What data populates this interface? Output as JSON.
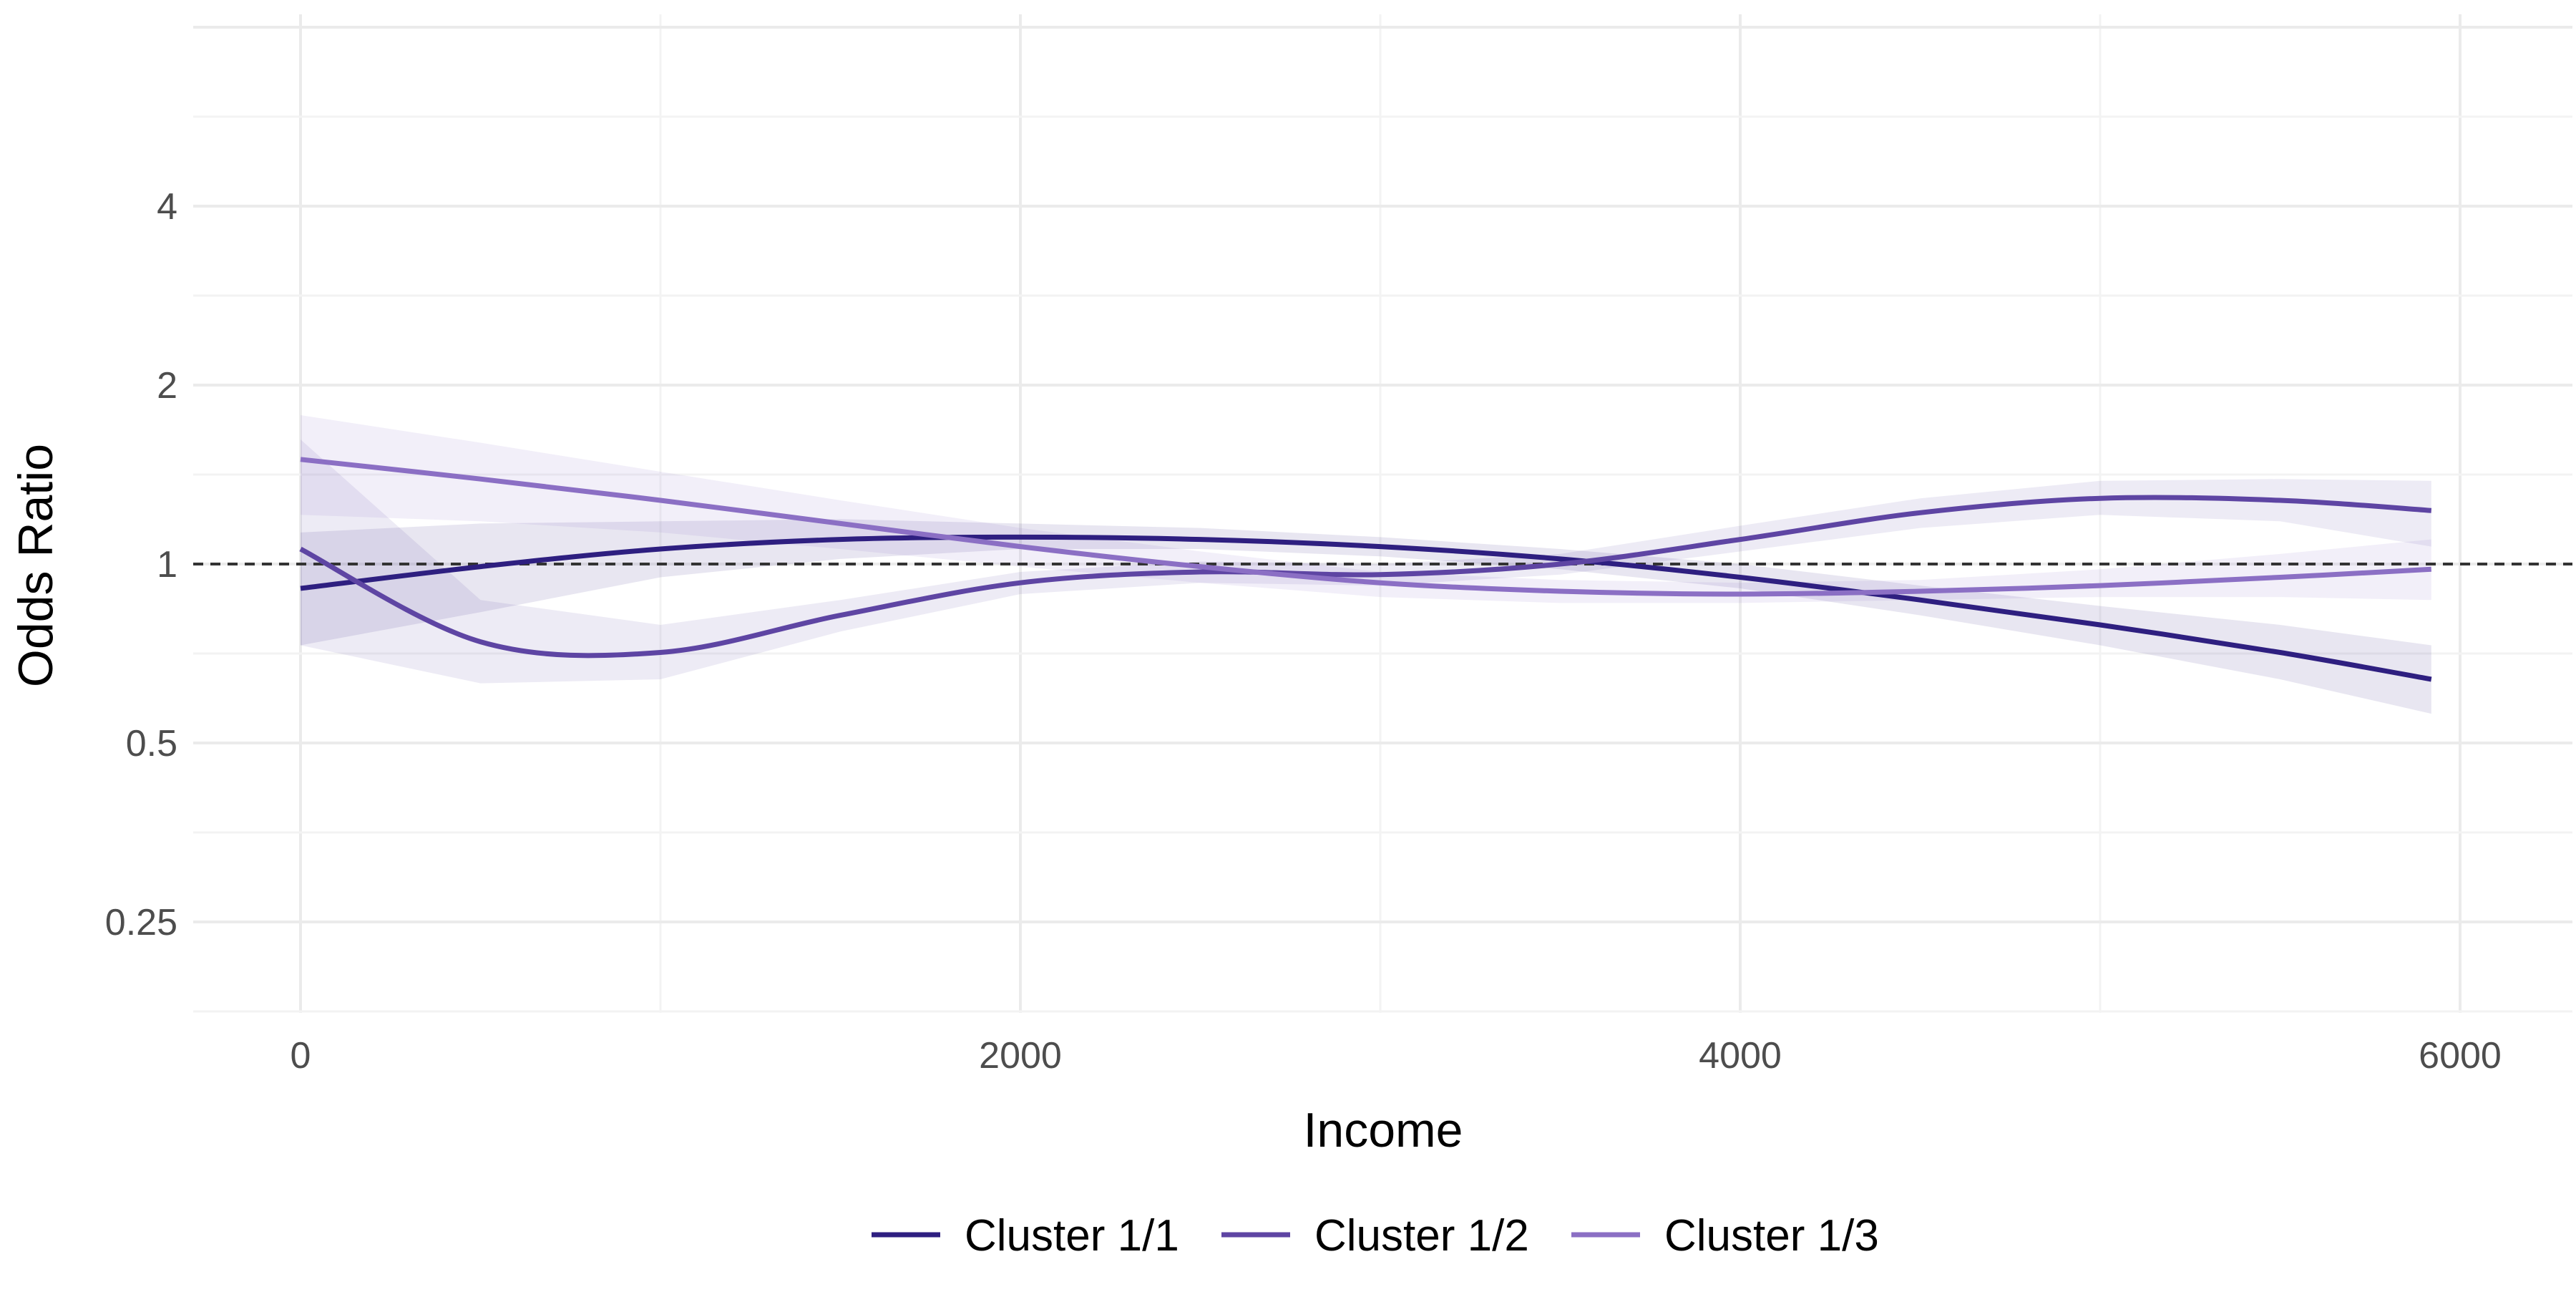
{
  "chart_data": {
    "type": "line",
    "title": "",
    "xlabel": "Income",
    "ylabel": "Odds Ratio",
    "xlim": [
      -300,
      6160
    ],
    "ylim": [
      0.18,
      6.6
    ],
    "y_scale": "log2",
    "x_ticks": [
      0,
      2000,
      4000,
      6000
    ],
    "x_tick_labels": [
      "0",
      "2000",
      "4000",
      "6000"
    ],
    "y_ticks": [
      0.25,
      0.5,
      1,
      2,
      4
    ],
    "y_tick_labels": [
      "0.25",
      "0.5",
      "1",
      "2",
      "4"
    ],
    "reference_line": {
      "y": 1,
      "style": "dashed",
      "color": "#333333"
    },
    "grid": true,
    "legend_position": "bottom",
    "x": [
      0,
      500,
      1000,
      1500,
      2000,
      2500,
      3000,
      3500,
      4000,
      4500,
      5000,
      5500,
      5920
    ],
    "series": [
      {
        "name": "Cluster 1/1",
        "color": "#2e1f80",
        "values": [
          0.91,
          0.99,
          1.06,
          1.1,
          1.11,
          1.1,
          1.07,
          1.02,
          0.95,
          0.87,
          0.79,
          0.71,
          0.64
        ],
        "lower": [
          0.73,
          0.83,
          0.95,
          1.02,
          1.06,
          1.06,
          1.03,
          0.98,
          0.91,
          0.82,
          0.73,
          0.64,
          0.56
        ],
        "upper": [
          1.13,
          1.17,
          1.18,
          1.19,
          1.17,
          1.15,
          1.11,
          1.06,
          1.0,
          0.92,
          0.85,
          0.79,
          0.73
        ]
      },
      {
        "name": "Cluster 1/2",
        "color": "#5e45a3",
        "values": [
          1.06,
          0.74,
          0.71,
          0.82,
          0.93,
          0.97,
          0.96,
          1.0,
          1.1,
          1.22,
          1.29,
          1.28,
          1.23
        ],
        "lower": [
          0.73,
          0.63,
          0.64,
          0.77,
          0.89,
          0.93,
          0.92,
          0.96,
          1.05,
          1.15,
          1.21,
          1.18,
          1.07
        ],
        "upper": [
          1.62,
          0.87,
          0.79,
          0.87,
          0.97,
          1.01,
          1.0,
          1.04,
          1.16,
          1.29,
          1.38,
          1.39,
          1.38
        ]
      },
      {
        "name": "Cluster 1/3",
        "color": "#8b6fc4",
        "values": [
          1.5,
          1.39,
          1.28,
          1.17,
          1.07,
          0.99,
          0.93,
          0.9,
          0.89,
          0.9,
          0.92,
          0.95,
          0.98
        ],
        "lower": [
          1.21,
          1.18,
          1.13,
          1.06,
          0.99,
          0.93,
          0.88,
          0.86,
          0.86,
          0.87,
          0.88,
          0.88,
          0.87
        ],
        "upper": [
          1.78,
          1.6,
          1.43,
          1.28,
          1.15,
          1.05,
          0.97,
          0.94,
          0.93,
          0.94,
          0.98,
          1.04,
          1.1
        ]
      }
    ]
  }
}
